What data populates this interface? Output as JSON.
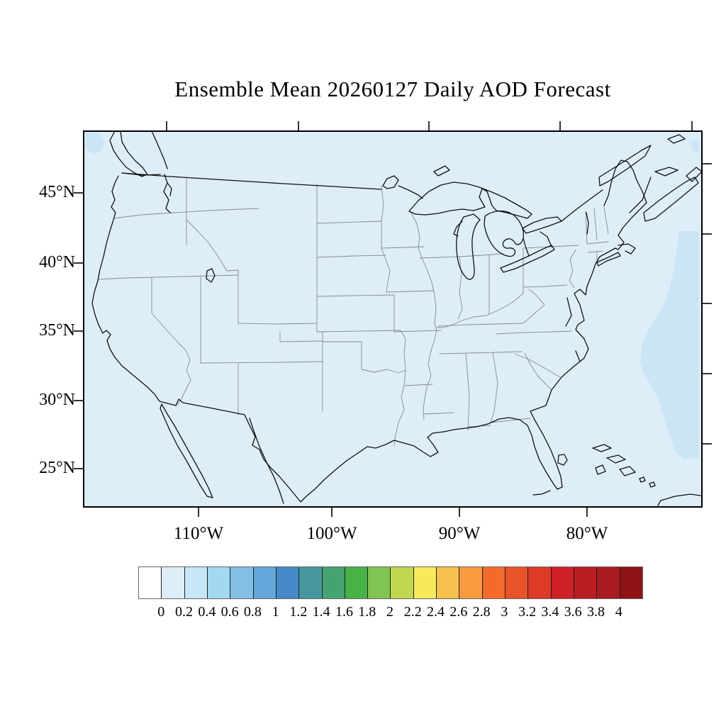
{
  "title": "Ensemble Mean 20260127 Daily AOD Forecast",
  "map": {
    "lat_tick_labels": [
      "45°N",
      "40°N",
      "35°N",
      "30°N",
      "25°N"
    ],
    "lon_tick_labels": [
      "110°W",
      "100°W",
      "90°W",
      "80°W"
    ],
    "background_color": "#ddeef9",
    "aod_patch_color": "#c9e5f6",
    "coastline_color": "#111111",
    "state_border_color": "#8a8a8a",
    "frame_color": "#000000"
  },
  "colorbar": {
    "boundary_labels": [
      "0",
      "0.2",
      "0.4",
      "0.6",
      "0.8",
      "1",
      "1.2",
      "1.4",
      "1.6",
      "1.8",
      "2",
      "2.2",
      "2.4",
      "2.6",
      "2.8",
      "3",
      "3.2",
      "3.4",
      "3.6",
      "3.8",
      "4"
    ],
    "cell_colors": [
      "#ffffff",
      "#ddeef9",
      "#c7e6f7",
      "#a3d8f2",
      "#82c0e6",
      "#64a6d9",
      "#4689c9",
      "#47979e",
      "#44a370",
      "#47b247",
      "#80c453",
      "#c3d64f",
      "#f7e95c",
      "#f6c14d",
      "#f79a40",
      "#f36a2a",
      "#e85329",
      "#dd3b27",
      "#cf2128",
      "#b91d22",
      "#a81b1e",
      "#8e1416"
    ]
  },
  "chart_data": {
    "type": "heatmap",
    "title": "Ensemble Mean 20260127 Daily AOD Forecast",
    "x_axis": {
      "ticks": [
        "110°W",
        "100°W",
        "90°W",
        "80°W"
      ]
    },
    "y_axis": {
      "ticks": [
        "45°N",
        "40°N",
        "35°N",
        "30°N",
        "25°N"
      ]
    },
    "colorbar_scale": {
      "min": 0,
      "max": 4,
      "step": 0.2,
      "under_color": "#ffffff",
      "over_color": "#8e1416"
    },
    "field_summary": [
      {
        "region": "CONUS land and most surrounding ocean",
        "aod_range": "0.0-0.2"
      },
      {
        "region": "Western Atlantic off the US East Coast",
        "aod_range": "0.2-0.4"
      },
      {
        "region": "Pacific near Vancouver Island (NW map corner)",
        "aod_range": "0.2-0.4"
      }
    ]
  }
}
